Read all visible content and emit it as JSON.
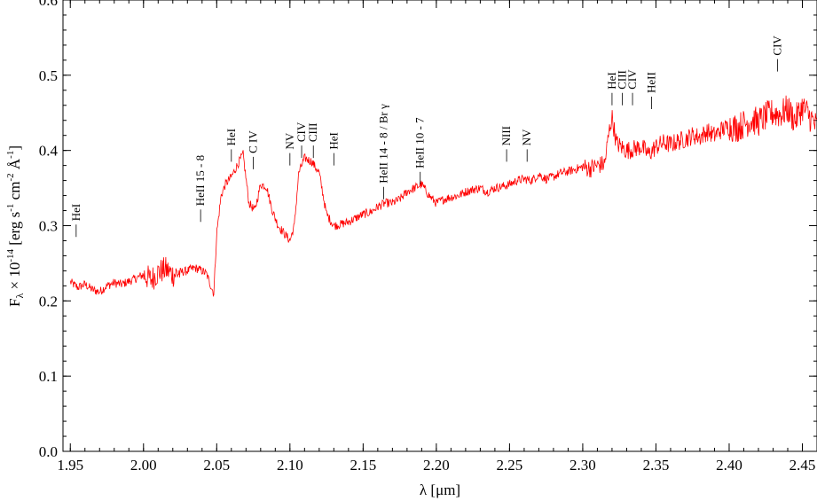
{
  "chart_data": {
    "type": "line",
    "xlabel": "λ [μm]",
    "ylabel": "F_λ × 10^-14 [erg s^-1 cm^-2 Å^-1]",
    "ylabel_parts": {
      "main": "F",
      "main_sub": "λ",
      "times": "×",
      "ten": "10",
      "exp": "-14",
      "unit_open": "[erg s",
      "unit_exp1": "-1",
      "unit_mid": "cm",
      "unit_exp2": "-2",
      "unit_ang": "Å",
      "unit_exp3": "-1",
      "unit_close": "]"
    },
    "xlim": [
      1.945,
      2.46
    ],
    "ylim": [
      0.0,
      0.6
    ],
    "x_ticks": [
      "1.95",
      "2.00",
      "2.05",
      "2.10",
      "2.15",
      "2.20",
      "2.25",
      "2.30",
      "2.35",
      "2.40",
      "2.45"
    ],
    "y_ticks": [
      "0.0",
      "0.1",
      "0.2",
      "0.3",
      "0.4",
      "0.5",
      "0.6"
    ],
    "grid": false,
    "line_color": "#ff0000",
    "series": [
      {
        "x": [
          1.95,
          1.955,
          1.96,
          1.965,
          1.97,
          1.975,
          1.98,
          1.985,
          1.99,
          1.995,
          2.0,
          2.005,
          2.01,
          2.015,
          2.02,
          2.025,
          2.03,
          2.035,
          2.04,
          2.043,
          2.046,
          2.048,
          2.05,
          2.053,
          2.056,
          2.06,
          2.064,
          2.068,
          2.072,
          2.076,
          2.08,
          2.084,
          2.088,
          2.092,
          2.096,
          2.1,
          2.103,
          2.106,
          2.11,
          2.115,
          2.12,
          2.125,
          2.13,
          2.135,
          2.14,
          2.145,
          2.15,
          2.155,
          2.16,
          2.165,
          2.17,
          2.175,
          2.18,
          2.185,
          2.19,
          2.195,
          2.2,
          2.205,
          2.21,
          2.215,
          2.22,
          2.225,
          2.23,
          2.235,
          2.24,
          2.245,
          2.25,
          2.255,
          2.26,
          2.265,
          2.27,
          2.275,
          2.28,
          2.285,
          2.29,
          2.295,
          2.3,
          2.305,
          2.31,
          2.315,
          2.318,
          2.32,
          2.323,
          2.326,
          2.33,
          2.335,
          2.34,
          2.345,
          2.35,
          2.355,
          2.36,
          2.365,
          2.37,
          2.375,
          2.38,
          2.385,
          2.39,
          2.395,
          2.4,
          2.405,
          2.41,
          2.415,
          2.42,
          2.425,
          2.43,
          2.435,
          2.44,
          2.445,
          2.45,
          2.455,
          2.46
        ],
        "y": [
          0.225,
          0.218,
          0.222,
          0.215,
          0.212,
          0.22,
          0.224,
          0.222,
          0.226,
          0.23,
          0.235,
          0.228,
          0.238,
          0.242,
          0.235,
          0.238,
          0.24,
          0.244,
          0.24,
          0.236,
          0.22,
          0.21,
          0.29,
          0.34,
          0.355,
          0.365,
          0.38,
          0.395,
          0.33,
          0.32,
          0.355,
          0.352,
          0.32,
          0.3,
          0.29,
          0.28,
          0.3,
          0.37,
          0.39,
          0.385,
          0.37,
          0.315,
          0.3,
          0.302,
          0.305,
          0.31,
          0.315,
          0.318,
          0.325,
          0.33,
          0.33,
          0.335,
          0.345,
          0.35,
          0.355,
          0.34,
          0.33,
          0.335,
          0.338,
          0.34,
          0.345,
          0.348,
          0.35,
          0.345,
          0.35,
          0.352,
          0.355,
          0.36,
          0.362,
          0.36,
          0.368,
          0.362,
          0.365,
          0.37,
          0.372,
          0.375,
          0.378,
          0.376,
          0.38,
          0.382,
          0.425,
          0.445,
          0.41,
          0.405,
          0.4,
          0.402,
          0.405,
          0.395,
          0.405,
          0.41,
          0.408,
          0.412,
          0.415,
          0.42,
          0.418,
          0.425,
          0.42,
          0.428,
          0.432,
          0.43,
          0.435,
          0.44,
          0.438,
          0.445,
          0.45,
          0.448,
          0.455,
          0.44,
          0.458,
          0.445,
          0.43
        ]
      }
    ],
    "annotations": [
      {
        "label": "HeI",
        "x": 1.954,
        "y": 0.285
      },
      {
        "label": "HeII 15 - 8",
        "x": 2.039,
        "y": 0.305
      },
      {
        "label": "HeI",
        "x": 2.06,
        "y": 0.385
      },
      {
        "label": "C IV",
        "x": 2.075,
        "y": 0.375
      },
      {
        "label": "NV",
        "x": 2.1,
        "y": 0.38
      },
      {
        "label": "CIV",
        "x": 2.108,
        "y": 0.39
      },
      {
        "label": "CIII",
        "x": 2.116,
        "y": 0.39
      },
      {
        "label": "HeI",
        "x": 2.13,
        "y": 0.38
      },
      {
        "label": "HeII 14 - 8 / Br γ",
        "x": 2.164,
        "y": 0.335
      },
      {
        "label": "HeII 10 - 7",
        "x": 2.189,
        "y": 0.355
      },
      {
        "label": "NIII",
        "x": 2.248,
        "y": 0.385
      },
      {
        "label": "NV",
        "x": 2.262,
        "y": 0.385
      },
      {
        "label": "HeI",
        "x": 2.32,
        "y": 0.46
      },
      {
        "label": "CIII",
        "x": 2.327,
        "y": 0.46
      },
      {
        "label": "CIV",
        "x": 2.334,
        "y": 0.46
      },
      {
        "label": "HeII",
        "x": 2.347,
        "y": 0.455
      },
      {
        "label": "CIV",
        "x": 2.433,
        "y": 0.505
      }
    ]
  }
}
